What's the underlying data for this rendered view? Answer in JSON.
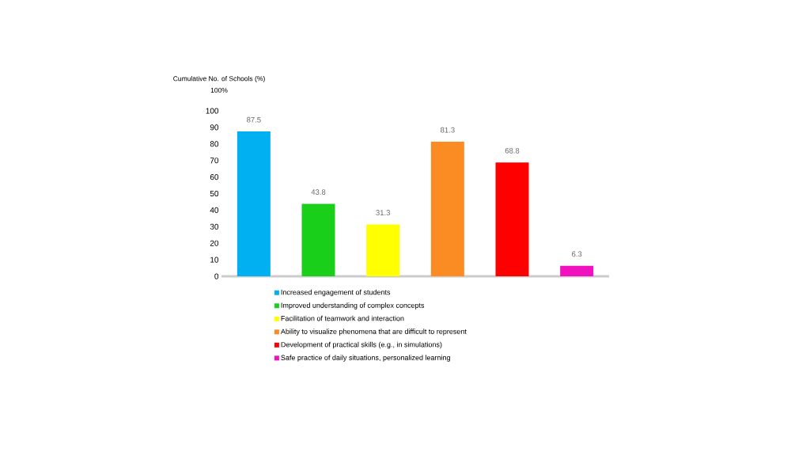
{
  "chart_data": {
    "type": "bar",
    "ylabel": "Cumulative No. of Schools (%)",
    "annotations": [
      "100%"
    ],
    "categories": [
      null,
      null,
      null,
      null,
      null,
      null
    ],
    "series": [
      {
        "name": "Increased engagement of students",
        "color": "#00b0f0",
        "values": [
          87.5,
          null,
          null,
          null,
          null,
          null
        ]
      },
      {
        "name": "Improved understanding of complex concepts",
        "color": "#19cf19",
        "values": [
          null,
          43.8,
          null,
          null,
          null,
          null
        ]
      },
      {
        "name": "Facilitation of teamwork and interaction",
        "color": "#ffff00",
        "values": [
          null,
          null,
          31.3,
          null,
          null,
          null
        ]
      },
      {
        "name": "Ability to visualize phenomena that are difficult to represent",
        "color": "#fb8c24",
        "values": [
          null,
          null,
          null,
          81.3,
          null,
          null
        ]
      },
      {
        "name": "Development of practical skills (e.g., in simulations)",
        "color": "#ff0000",
        "values": [
          null,
          null,
          null,
          null,
          68.8,
          null
        ]
      },
      {
        "name": "Safe practice of daily situations, personalized learning",
        "color": "#f012be",
        "values": [
          null,
          null,
          null,
          null,
          null,
          6.3
        ]
      }
    ],
    "ylim": [
      0,
      100
    ],
    "yticks": [
      0,
      10,
      20,
      30,
      40,
      50,
      60,
      70,
      80,
      90,
      100
    ],
    "data_labels": true,
    "legend": "bottom",
    "grid": false
  }
}
